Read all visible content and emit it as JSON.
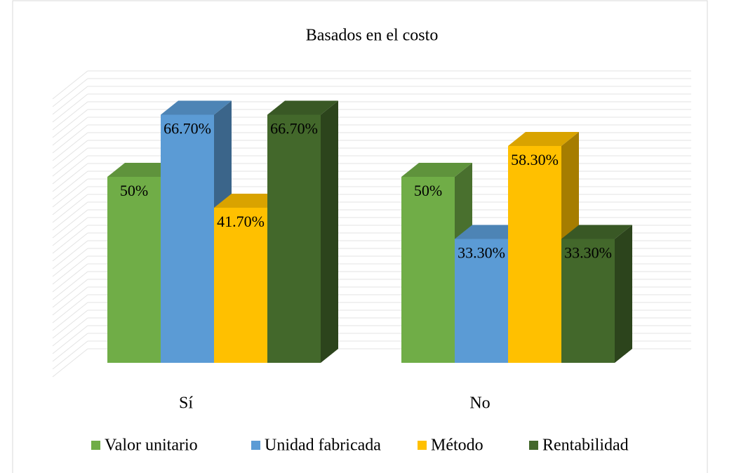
{
  "chart_data": {
    "type": "bar3d",
    "title": "Basados en el costo",
    "categories": [
      "Sí",
      "No"
    ],
    "series": [
      {
        "name": "Valor unitario",
        "color": "#70ad47",
        "values": [
          50,
          50
        ],
        "value_labels": [
          "50%",
          "50%"
        ]
      },
      {
        "name": "Unidad fabricada",
        "color": "#5b9bd5",
        "values": [
          66.7,
          33.3
        ],
        "value_labels": [
          "66.70%",
          "33.30%"
        ]
      },
      {
        "name": "Método",
        "color": "#ffc000",
        "values": [
          41.7,
          58.3
        ],
        "value_labels": [
          "41.70%",
          "58.30%"
        ]
      },
      {
        "name": "Rentabilidad",
        "color": "#43682b",
        "values": [
          66.7,
          33.3
        ],
        "value_labels": [
          "66.70%",
          "33.30%"
        ]
      }
    ],
    "ylim": [
      0,
      70
    ],
    "grid": true,
    "legend": "bottom"
  }
}
